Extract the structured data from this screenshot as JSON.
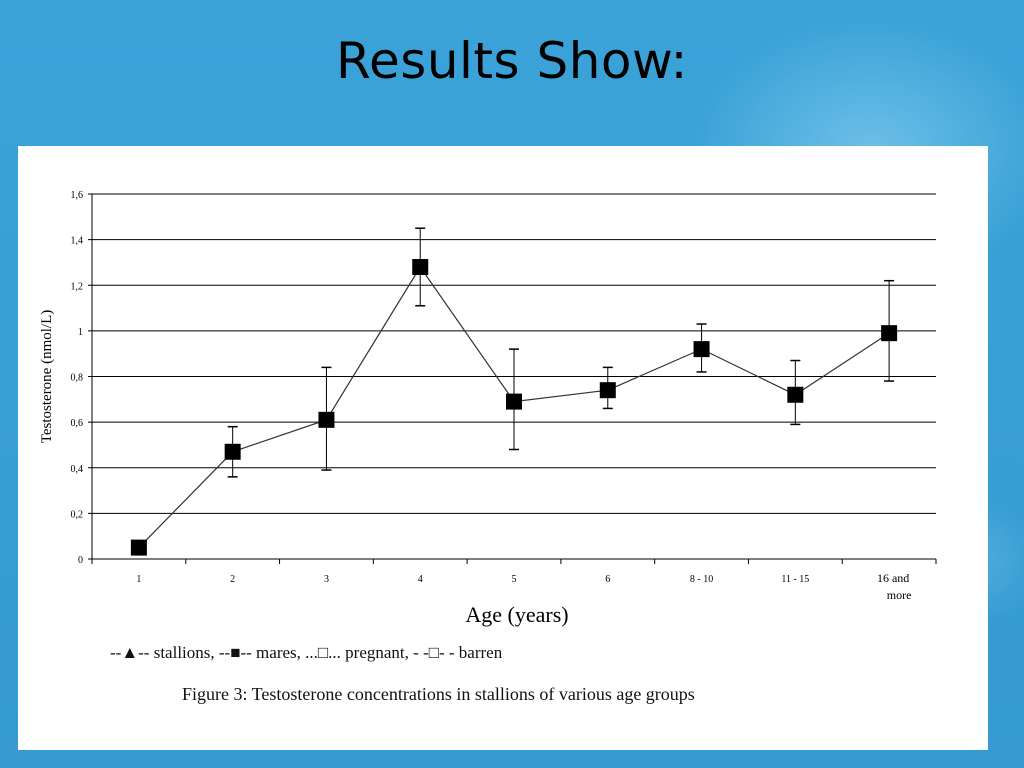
{
  "slide": {
    "title": "Results Show:"
  },
  "figure": {
    "legend": "--▲-- stallions, --■-- mares, ...□... pregnant, - -□- - barren",
    "caption": "Figure 3: Testosterone concentrations in stallions of various age groups"
  },
  "chart_data": {
    "type": "line",
    "xlabel": "Age (years)",
    "ylabel": "Testosterone (nmol/L)",
    "ylim": [
      0,
      1.6
    ],
    "ytick_labels": [
      "0",
      "0,2",
      "0,4",
      "0,6",
      "0,8",
      "1",
      "1,2",
      "1,4",
      "1,6"
    ],
    "grid": "horizontal",
    "categories": [
      "1",
      "2",
      "3",
      "4",
      "5",
      "6",
      "8 - 10",
      "11 - 15",
      "16 and more"
    ],
    "series": [
      {
        "marker": "filled-square",
        "color": "#000000",
        "values": [
          0.05,
          0.47,
          0.61,
          1.28,
          0.69,
          0.74,
          0.92,
          0.72,
          0.99
        ],
        "error_upper": [
          0.05,
          0.58,
          0.84,
          1.45,
          0.92,
          0.84,
          1.03,
          0.87,
          1.22
        ],
        "error_lower": [
          0.05,
          0.36,
          0.39,
          1.11,
          0.48,
          0.66,
          0.82,
          0.59,
          0.78
        ]
      }
    ]
  }
}
